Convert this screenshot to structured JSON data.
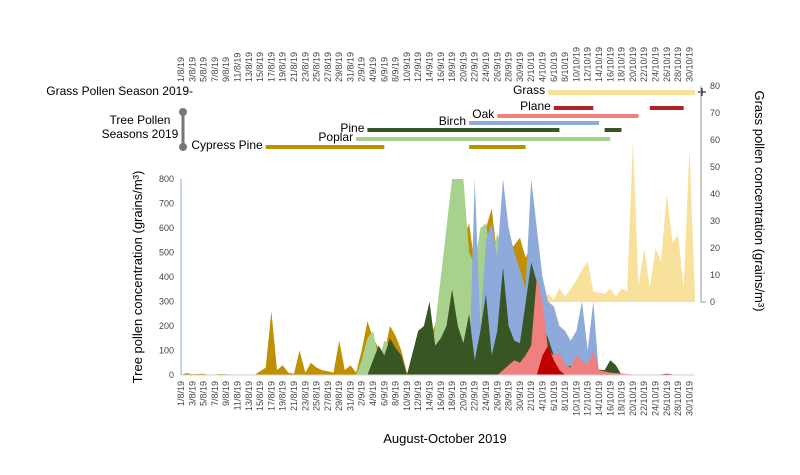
{
  "chart_data": {
    "type": "area",
    "xlabel": "August-October 2019",
    "ylabel_left": "Tree pollen concentration (grains/m³)",
    "ylabel_right": "Grass pollen concentration (grains/m³)",
    "left_ticks": [
      "0",
      "100",
      "200",
      "300",
      "400",
      "500",
      "600",
      "700",
      "800"
    ],
    "right_ticks": [
      "0",
      "10",
      "20",
      "30",
      "40",
      "50",
      "60",
      "70",
      "80"
    ],
    "ylim_left": [
      0,
      800
    ],
    "ylim_right": [
      0,
      80
    ],
    "x_tick_labels": [
      "1/8/19",
      "3/8/19",
      "5/8/19",
      "7/8/19",
      "9/8/19",
      "11/8/19",
      "13/8/19",
      "15/8/19",
      "17/8/19",
      "19/8/19",
      "21/8/19",
      "23/8/19",
      "25/8/19",
      "27/8/19",
      "29/8/19",
      "31/8/19",
      "2/9/19",
      "4/9/19",
      "6/9/19",
      "8/9/19",
      "10/9/19",
      "12/9/19",
      "14/9/19",
      "16/9/19",
      "18/9/19",
      "20/9/19",
      "22/9/19",
      "24/9/19",
      "26/9/19",
      "28/9/19",
      "30/9/19",
      "2/10/19",
      "4/10/19",
      "6/10/19",
      "8/10/19",
      "10/10/19",
      "12/10/19",
      "14/10/19",
      "16/10/19",
      "18/10/19",
      "20/10/19",
      "22/10/19",
      "24/10/19",
      "26/10/19",
      "28/10/19",
      "30/10/19"
    ],
    "season_headers": {
      "grass": "Grass Pollen Season 2019-",
      "tree_line1": "Tree Pollen",
      "tree_line2": "Seasons 2019"
    },
    "seasons": [
      {
        "name": "Grass",
        "color": "#f8e19a",
        "ranges": [
          [
            "2019-10-05",
            "2019-10-31"
          ]
        ]
      },
      {
        "name": "Plane",
        "color": "#b22222",
        "ranges": [
          [
            "2019-10-06",
            "2019-10-13"
          ],
          [
            "2019-10-23",
            "2019-10-29"
          ]
        ]
      },
      {
        "name": "Oak",
        "color": "#f08080",
        "ranges": [
          [
            "2019-09-26",
            "2019-10-21"
          ]
        ]
      },
      {
        "name": "Birch",
        "color": "#8eaadb",
        "ranges": [
          [
            "2019-09-21",
            "2019-10-14"
          ]
        ]
      },
      {
        "name": "Pine",
        "color": "#375623",
        "ranges": [
          [
            "2019-09-03",
            "2019-10-07"
          ],
          [
            "2019-10-15",
            "2019-10-18"
          ]
        ]
      },
      {
        "name": "Poplar",
        "color": "#a9d18e",
        "ranges": [
          [
            "2019-09-01",
            "2019-10-16"
          ]
        ]
      },
      {
        "name": "Cypress Pine",
        "color": "#bf9000",
        "ranges": [
          [
            "2019-08-16",
            "2019-09-06"
          ],
          [
            "2019-09-21",
            "2019-10-01"
          ]
        ]
      }
    ],
    "series": [
      {
        "name": "Cypress Pine",
        "color": "#bf9000",
        "points": [
          [
            "2019-08-01",
            0
          ],
          [
            "2019-08-02",
            8
          ],
          [
            "2019-08-03",
            3
          ],
          [
            "2019-08-05",
            5
          ],
          [
            "2019-08-06",
            0
          ],
          [
            "2019-08-08",
            4
          ],
          [
            "2019-08-10",
            2
          ],
          [
            "2019-08-12",
            0
          ],
          [
            "2019-08-14",
            0
          ],
          [
            "2019-08-16",
            30
          ],
          [
            "2019-08-17",
            260
          ],
          [
            "2019-08-18",
            20
          ],
          [
            "2019-08-19",
            40
          ],
          [
            "2019-08-20",
            10
          ],
          [
            "2019-08-21",
            5
          ],
          [
            "2019-08-22",
            100
          ],
          [
            "2019-08-23",
            10
          ],
          [
            "2019-08-24",
            50
          ],
          [
            "2019-08-25",
            30
          ],
          [
            "2019-08-26",
            20
          ],
          [
            "2019-08-27",
            15
          ],
          [
            "2019-08-28",
            10
          ],
          [
            "2019-08-29",
            140
          ],
          [
            "2019-08-30",
            20
          ],
          [
            "2019-08-31",
            40
          ],
          [
            "2019-09-01",
            10
          ],
          [
            "2019-09-02",
            100
          ],
          [
            "2019-09-03",
            220
          ],
          [
            "2019-09-04",
            150
          ],
          [
            "2019-09-05",
            110
          ],
          [
            "2019-09-06",
            90
          ],
          [
            "2019-09-07",
            200
          ],
          [
            "2019-09-08",
            160
          ],
          [
            "2019-09-09",
            100
          ],
          [
            "2019-09-10",
            10
          ],
          [
            "2019-09-12",
            0
          ],
          [
            "2019-09-21",
            620
          ],
          [
            "2019-09-22",
            450
          ],
          [
            "2019-09-23",
            300
          ],
          [
            "2019-09-24",
            600
          ],
          [
            "2019-09-25",
            680
          ],
          [
            "2019-09-26",
            480
          ],
          [
            "2019-09-27",
            600
          ],
          [
            "2019-09-28",
            500
          ],
          [
            "2019-09-30",
            560
          ],
          [
            "2019-10-01",
            480
          ],
          [
            "2019-10-02",
            520
          ],
          [
            "2019-10-03",
            0
          ]
        ]
      },
      {
        "name": "Poplar",
        "color": "#a9d18e",
        "points": [
          [
            "2019-09-01",
            0
          ],
          [
            "2019-09-02",
            60
          ],
          [
            "2019-09-03",
            150
          ],
          [
            "2019-09-04",
            180
          ],
          [
            "2019-09-05",
            60
          ],
          [
            "2019-09-06",
            140
          ],
          [
            "2019-09-07",
            120
          ],
          [
            "2019-09-08",
            100
          ],
          [
            "2019-09-09",
            60
          ],
          [
            "2019-09-10",
            0
          ],
          [
            "2019-09-14",
            0
          ],
          [
            "2019-09-18",
            800
          ],
          [
            "2019-09-19",
            800
          ],
          [
            "2019-09-20",
            800
          ],
          [
            "2019-09-21",
            500
          ],
          [
            "2019-09-22",
            450
          ],
          [
            "2019-09-23",
            600
          ],
          [
            "2019-09-24",
            620
          ],
          [
            "2019-09-25",
            450
          ],
          [
            "2019-09-26",
            580
          ],
          [
            "2019-09-27",
            500
          ],
          [
            "2019-09-28",
            450
          ],
          [
            "2019-09-29",
            430
          ],
          [
            "2019-09-30",
            430
          ],
          [
            "2019-10-01",
            250
          ],
          [
            "2019-10-02",
            150
          ],
          [
            "2019-10-03",
            120
          ],
          [
            "2019-10-04",
            80
          ],
          [
            "2019-10-05",
            40
          ],
          [
            "2019-10-10",
            30
          ],
          [
            "2019-10-14",
            20
          ],
          [
            "2019-10-16",
            10
          ]
        ]
      },
      {
        "name": "Birch",
        "color": "#8eaadb",
        "points": [
          [
            "2019-09-21",
            0
          ],
          [
            "2019-09-22",
            800
          ],
          [
            "2019-09-23",
            200
          ],
          [
            "2019-09-24",
            550
          ],
          [
            "2019-09-25",
            620
          ],
          [
            "2019-09-26",
            480
          ],
          [
            "2019-09-27",
            800
          ],
          [
            "2019-09-28",
            600
          ],
          [
            "2019-09-29",
            500
          ],
          [
            "2019-09-30",
            430
          ],
          [
            "2019-10-01",
            350
          ],
          [
            "2019-10-02",
            800
          ],
          [
            "2019-10-03",
            600
          ],
          [
            "2019-10-04",
            400
          ],
          [
            "2019-10-05",
            300
          ],
          [
            "2019-10-06",
            280
          ],
          [
            "2019-10-07",
            200
          ],
          [
            "2019-10-08",
            180
          ],
          [
            "2019-10-09",
            140
          ],
          [
            "2019-10-10",
            180
          ],
          [
            "2019-10-11",
            300
          ],
          [
            "2019-10-12",
            100
          ],
          [
            "2019-10-13",
            300
          ],
          [
            "2019-10-14",
            0
          ]
        ]
      },
      {
        "name": "Pine",
        "color": "#375623",
        "points": [
          [
            "2019-09-03",
            0
          ],
          [
            "2019-09-04",
            60
          ],
          [
            "2019-09-05",
            120
          ],
          [
            "2019-09-06",
            80
          ],
          [
            "2019-09-07",
            150
          ],
          [
            "2019-09-08",
            110
          ],
          [
            "2019-09-09",
            80
          ],
          [
            "2019-09-10",
            0
          ],
          [
            "2019-09-12",
            180
          ],
          [
            "2019-09-13",
            200
          ],
          [
            "2019-09-14",
            300
          ],
          [
            "2019-09-15",
            120
          ],
          [
            "2019-09-16",
            150
          ],
          [
            "2019-09-17",
            200
          ],
          [
            "2019-09-18",
            350
          ],
          [
            "2019-09-19",
            200
          ],
          [
            "2019-09-20",
            130
          ],
          [
            "2019-09-21",
            250
          ],
          [
            "2019-09-22",
            60
          ],
          [
            "2019-09-23",
            180
          ],
          [
            "2019-09-24",
            330
          ],
          [
            "2019-09-25",
            80
          ],
          [
            "2019-09-26",
            180
          ],
          [
            "2019-09-27",
            440
          ],
          [
            "2019-09-28",
            200
          ],
          [
            "2019-09-29",
            140
          ],
          [
            "2019-09-30",
            130
          ],
          [
            "2019-10-01",
            290
          ],
          [
            "2019-10-02",
            460
          ],
          [
            "2019-10-03",
            380
          ],
          [
            "2019-10-04",
            200
          ],
          [
            "2019-10-05",
            150
          ],
          [
            "2019-10-06",
            80
          ],
          [
            "2019-10-07",
            40
          ],
          [
            "2019-10-15",
            20
          ],
          [
            "2019-10-16",
            60
          ],
          [
            "2019-10-17",
            40
          ],
          [
            "2019-10-18",
            0
          ]
        ]
      },
      {
        "name": "Oak",
        "color": "#f08080",
        "points": [
          [
            "2019-09-26",
            0
          ],
          [
            "2019-09-27",
            20
          ],
          [
            "2019-09-28",
            40
          ],
          [
            "2019-09-29",
            60
          ],
          [
            "2019-09-30",
            50
          ],
          [
            "2019-10-01",
            80
          ],
          [
            "2019-10-02",
            120
          ],
          [
            "2019-10-03",
            400
          ],
          [
            "2019-10-04",
            300
          ],
          [
            "2019-10-05",
            100
          ],
          [
            "2019-10-06",
            80
          ],
          [
            "2019-10-07",
            90
          ],
          [
            "2019-10-08",
            40
          ],
          [
            "2019-10-09",
            30
          ],
          [
            "2019-10-10",
            80
          ],
          [
            "2019-10-11",
            60
          ],
          [
            "2019-10-12",
            40
          ],
          [
            "2019-10-13",
            100
          ],
          [
            "2019-10-14",
            20
          ],
          [
            "2019-10-16",
            10
          ],
          [
            "2019-10-21",
            0
          ]
        ]
      },
      {
        "name": "Plane",
        "color": "#c00000",
        "points": [
          [
            "2019-10-03",
            0
          ],
          [
            "2019-10-04",
            80
          ],
          [
            "2019-10-05",
            120
          ],
          [
            "2019-10-06",
            60
          ],
          [
            "2019-10-07",
            20
          ],
          [
            "2019-10-08",
            0
          ],
          [
            "2019-10-24",
            0
          ],
          [
            "2019-10-26",
            5
          ],
          [
            "2019-10-28",
            0
          ]
        ]
      },
      {
        "name": "Grass",
        "color": "#f8e19a",
        "axis": "right",
        "points": [
          [
            "2019-10-04",
            0
          ],
          [
            "2019-10-05",
            3
          ],
          [
            "2019-10-06",
            1
          ],
          [
            "2019-10-07",
            5
          ],
          [
            "2019-10-08",
            2
          ],
          [
            "2019-10-10",
            8
          ],
          [
            "2019-10-11",
            12
          ],
          [
            "2019-10-12",
            15
          ],
          [
            "2019-10-13",
            4
          ],
          [
            "2019-10-15",
            3
          ],
          [
            "2019-10-16",
            5
          ],
          [
            "2019-10-17",
            2
          ],
          [
            "2019-10-18",
            5
          ],
          [
            "2019-10-19",
            4
          ],
          [
            "2019-10-20",
            60
          ],
          [
            "2019-10-21",
            6
          ],
          [
            "2019-10-22",
            20
          ],
          [
            "2019-10-23",
            5
          ],
          [
            "2019-10-24",
            20
          ],
          [
            "2019-10-25",
            15
          ],
          [
            "2019-10-26",
            40
          ],
          [
            "2019-10-27",
            22
          ],
          [
            "2019-10-28",
            25
          ],
          [
            "2019-10-29",
            5
          ],
          [
            "2019-10-30",
            57
          ],
          [
            "2019-10-31",
            2
          ]
        ]
      }
    ]
  }
}
